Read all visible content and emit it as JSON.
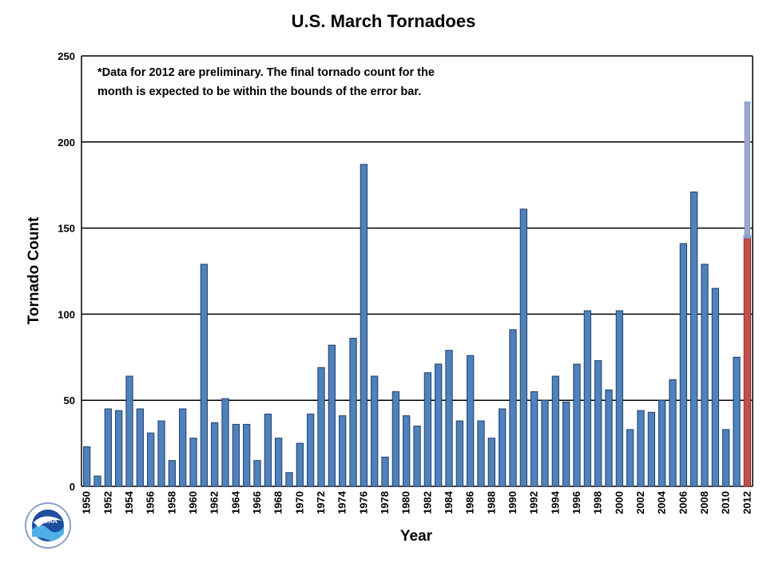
{
  "chart_data": {
    "type": "bar",
    "title": "U.S. March Tornadoes",
    "xlabel": "Year",
    "ylabel": "Tornado Count",
    "ylim": [
      0,
      250
    ],
    "yticks": [
      0,
      50,
      100,
      150,
      200,
      250
    ],
    "grid": true,
    "note_lines": [
      "*Data for 2012 are preliminary. The final tornado count for the",
      "month is expected to be within the bounds of the error bar."
    ],
    "categories": [
      "1950",
      "1951",
      "1952",
      "1953",
      "1954",
      "1955",
      "1956",
      "1957",
      "1958",
      "1959",
      "1960",
      "1961",
      "1962",
      "1963",
      "1964",
      "1965",
      "1966",
      "1967",
      "1968",
      "1969",
      "1970",
      "1971",
      "1972",
      "1973",
      "1974",
      "1975",
      "1976",
      "1977",
      "1978",
      "1979",
      "1980",
      "1981",
      "1982",
      "1983",
      "1984",
      "1985",
      "1986",
      "1987",
      "1988",
      "1989",
      "1990",
      "1991",
      "1992",
      "1993",
      "1994",
      "1995",
      "1996",
      "1997",
      "1998",
      "1999",
      "2000",
      "2001",
      "2002",
      "2003",
      "2004",
      "2005",
      "2006",
      "2007",
      "2008",
      "2009",
      "2010",
      "2011",
      "2012"
    ],
    "values": [
      23,
      6,
      45,
      44,
      64,
      45,
      31,
      38,
      15,
      45,
      28,
      129,
      37,
      51,
      36,
      36,
      15,
      42,
      28,
      8,
      25,
      42,
      69,
      82,
      41,
      86,
      187,
      64,
      17,
      55,
      41,
      35,
      66,
      71,
      79,
      38,
      76,
      38,
      28,
      45,
      91,
      161,
      55,
      50,
      64,
      49,
      71,
      102,
      73,
      56,
      102,
      33,
      44,
      43,
      50,
      62,
      141,
      171,
      129,
      115,
      33,
      75,
      145
    ],
    "preliminary_year": "2012",
    "error_bar": {
      "year": "2012",
      "low": 145,
      "high": 223
    },
    "colors": {
      "bar": "#4f81bd",
      "preliminary": "#c0504d",
      "error_bar": "#a5a5c8"
    }
  },
  "logo": {
    "text": "NOAA"
  }
}
